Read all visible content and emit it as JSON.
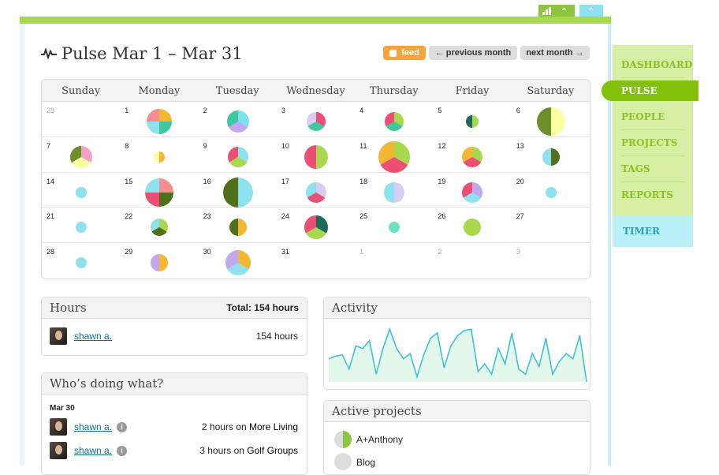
{
  "header": {
    "title": "Pulse Mar 1 – Mar 31",
    "feed_label": "feed",
    "prev_label": "← previous month",
    "next_label": "next month →"
  },
  "top_tabs": [
    "stats-icon",
    "chevron-up-icon"
  ],
  "nav": {
    "items": [
      "DASHBOARD",
      "PULSE",
      "PEOPLE",
      "PROJECTS",
      "TAGS",
      "REPORTS",
      "TIMER"
    ],
    "active": "PULSE"
  },
  "colors": {
    "green": "#8cc63f",
    "teal": "#3cc3d4",
    "accent": "#82c00c"
  },
  "calendar": {
    "weekdays": [
      "Sunday",
      "Monday",
      "Tuesday",
      "Wednesday",
      "Thursday",
      "Friday",
      "Saturday"
    ],
    "weeks": [
      [
        {
          "d": "28",
          "o": true
        },
        {
          "d": "1"
        },
        {
          "d": "2"
        },
        {
          "d": "3"
        },
        {
          "d": "4"
        },
        {
          "d": "5"
        },
        {
          "d": "6"
        }
      ],
      [
        {
          "d": "7"
        },
        {
          "d": "8"
        },
        {
          "d": "9"
        },
        {
          "d": "10"
        },
        {
          "d": "11"
        },
        {
          "d": "12"
        },
        {
          "d": "13"
        }
      ],
      [
        {
          "d": "14"
        },
        {
          "d": "15"
        },
        {
          "d": "16"
        },
        {
          "d": "17"
        },
        {
          "d": "18"
        },
        {
          "d": "19"
        },
        {
          "d": "20"
        }
      ],
      [
        {
          "d": "21"
        },
        {
          "d": "22"
        },
        {
          "d": "23"
        },
        {
          "d": "24"
        },
        {
          "d": "25"
        },
        {
          "d": "26"
        },
        {
          "d": "27"
        }
      ],
      [
        {
          "d": "28"
        },
        {
          "d": "29"
        },
        {
          "d": "30"
        },
        {
          "d": "31"
        },
        {
          "d": "1",
          "o": true
        },
        {
          "d": "2",
          "o": true
        },
        {
          "d": "3",
          "o": true
        }
      ]
    ],
    "pies": {
      "1": [
        "#f3b733",
        "#3fc8a0",
        "#8ee2ef",
        "#f58e8e"
      ],
      "2": [
        "#7de0ef",
        "#c2a8ef",
        "#3fc8a0"
      ],
      "3": [
        "#ec4f74",
        "#3fc8a0",
        "#d9cdf5"
      ],
      "4": [
        "#a8d84e",
        "#3fc8a0",
        "#ec4f74"
      ],
      "5": [
        "#a8d84e",
        "#1a6b5a"
      ],
      "6": [
        "#faffa1",
        "#6e8e2a"
      ],
      "7": [
        "#f5a0c8",
        "#faffa1",
        "#6e8e2a"
      ],
      "8": [
        "#f3b733",
        "#faffa1"
      ],
      "9": [
        "#8ee2ef",
        "#a8d84e",
        "#ec4f74"
      ],
      "10": [
        "#a8d84e",
        "#ec4f74"
      ],
      "11": [
        "#a8d84e",
        "#ec4f74",
        "#f3b733"
      ],
      "12": [
        "#a8d84e",
        "#ec4f74",
        "#f3b733"
      ],
      "13": [
        "#4f6f19",
        "#8ee2ef"
      ],
      "14": [
        "#8ee2ef"
      ],
      "15": [
        "#f58e8e",
        "#4f6f19",
        "#ec4f74",
        "#8ee2ef"
      ],
      "16": [
        "#8ee2ef",
        "#4f6f19"
      ],
      "17": [
        "#d9cdf5",
        "#ec4f74",
        "#8ee2ef"
      ],
      "18": [
        "#d9cdf5",
        "#8ee2ef"
      ],
      "19": [
        "#c2a8ef",
        "#8ee2ef",
        "#ec4f74"
      ],
      "20": [
        "#8ee2ef"
      ],
      "21": [
        "#8ee2ef"
      ],
      "22": [
        "#a8d84e",
        "#4f6f19",
        "#8ee2ef"
      ],
      "23": [
        "#f3b733",
        "#4f6f19"
      ],
      "24": [
        "#1a6b5a",
        "#a8d84e",
        "#ec4f74"
      ],
      "25": [
        "#6de0c8"
      ],
      "26": [
        "#a8d84e"
      ],
      "28": [
        "#8ee2ef"
      ],
      "29": [
        "#f3b733",
        "#c2a8ef"
      ],
      "30": [
        "#f3b733",
        "#8ee2ef",
        "#c2a8ef"
      ]
    }
  },
  "hours": {
    "title": "Hours",
    "total": "Total: 154 hours",
    "rows": [
      {
        "user": "shawn a.",
        "value": "154 hours"
      }
    ]
  },
  "whos": {
    "title": "Who’s doing what?",
    "date": "Mar 30",
    "rows": [
      {
        "user": "shawn a.",
        "pre": "2 hours on",
        "project": "More Living"
      },
      {
        "user": "shawn a.",
        "pre": "3 hours on",
        "project": "Golf Groups"
      }
    ]
  },
  "activity": {
    "title": "Activity",
    "values": [
      28,
      26,
      25,
      36,
      18,
      20,
      14,
      40,
      20,
      5,
      20,
      28,
      24,
      42,
      25,
      12,
      8,
      35,
      18,
      10,
      6,
      5,
      38,
      32,
      40,
      20,
      32,
      8,
      36,
      40,
      24,
      34,
      12,
      40,
      30,
      24,
      28,
      10,
      46
    ]
  },
  "projects": {
    "title": "Active projects",
    "items": [
      "A+Anthony",
      "Blog"
    ]
  }
}
